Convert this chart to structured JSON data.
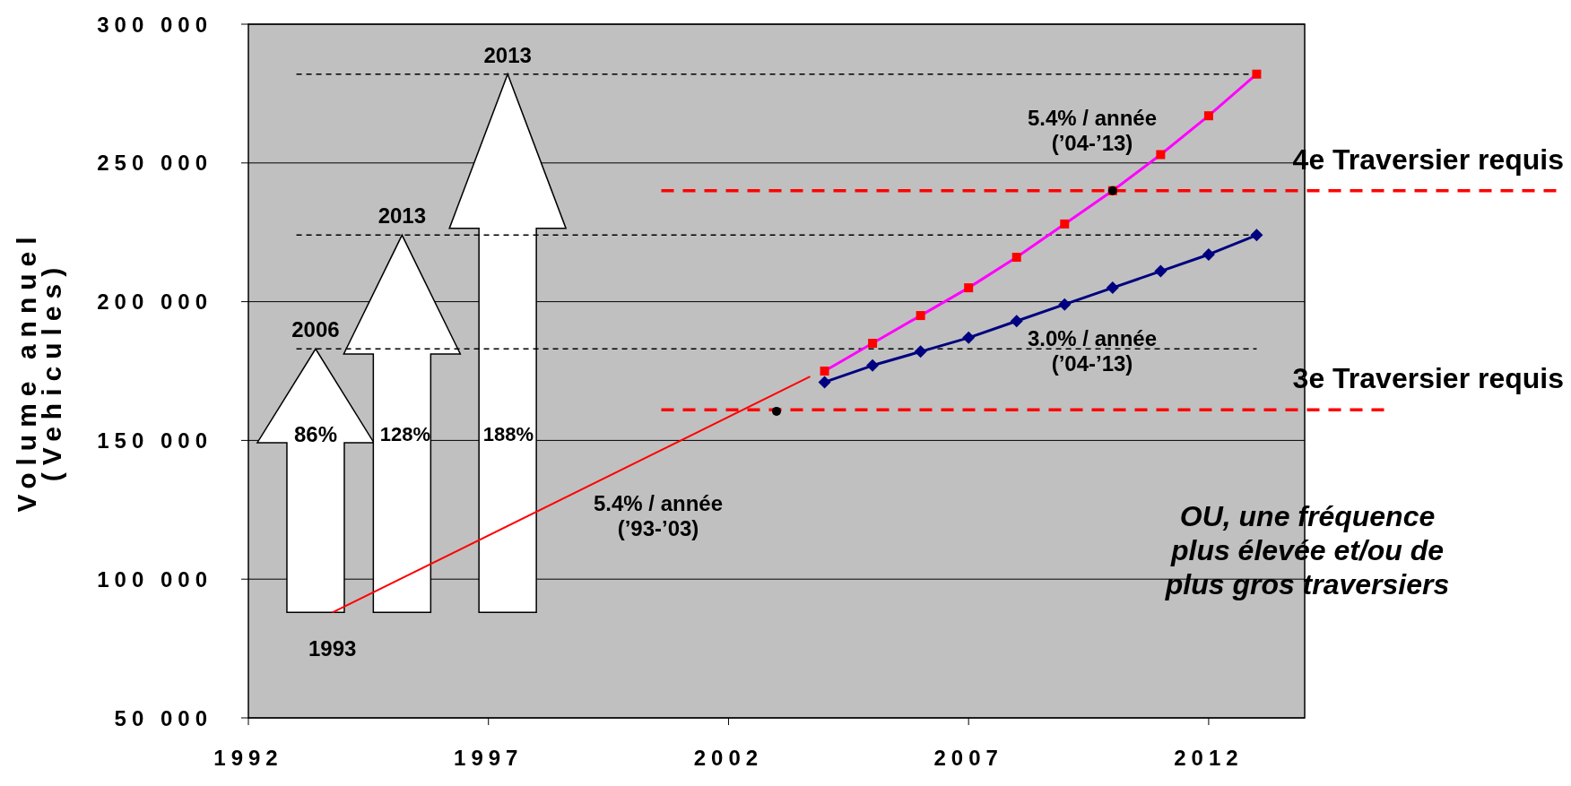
{
  "chart_data": {
    "type": "line",
    "ylabel": "Volume annuel\n(Vehicules)",
    "xlim": [
      1992,
      2014
    ],
    "xticks": [
      1992,
      1997,
      2002,
      2007,
      2012
    ],
    "ylim": [
      50000,
      300000
    ],
    "yticks": [
      {
        "value": 50000,
        "label": "50 000"
      },
      {
        "value": 100000,
        "label": "100 000"
      },
      {
        "value": 150000,
        "label": "150 000"
      },
      {
        "value": 200000,
        "label": "200 000"
      },
      {
        "value": 250000,
        "label": "250 000"
      },
      {
        "value": 300000,
        "label": "300 000"
      }
    ],
    "grid": "y",
    "series": [
      {
        "type": "line",
        "color": "#ff0000",
        "marker": "none",
        "x": [
          1993.75,
          2003.7
        ],
        "values": [
          88000,
          173000
        ]
      },
      {
        "type": "line",
        "color": "#ff00ff",
        "colors": [
          "#ff0000",
          "#ff0000",
          "#ff0000",
          "#ff0000",
          "#ff0000",
          "#ff0000",
          "#ff0000",
          "#ff0000",
          "#ff0000",
          "#ff0000"
        ],
        "marker": "square",
        "x": [
          2004,
          2005,
          2006,
          2007,
          2008,
          2009,
          2010,
          2011,
          2012,
          2013
        ],
        "values": [
          175000,
          185000,
          195000,
          205000,
          216000,
          228000,
          240000,
          253000,
          267000,
          282000
        ]
      },
      {
        "type": "line",
        "color": "#000080",
        "marker": "diamond",
        "x": [
          2004,
          2005,
          2006,
          2007,
          2008,
          2009,
          2010,
          2011,
          2012,
          2013
        ],
        "values": [
          171000,
          177000,
          182000,
          187000,
          193000,
          199000,
          205000,
          211000,
          217000,
          224000
        ]
      },
      {
        "type": "scatter",
        "color": "#000000",
        "marker": "circle",
        "x": [
          2003,
          2010
        ],
        "values": [
          160500,
          240000
        ]
      }
    ],
    "ref_lines": [
      {
        "axis": "y",
        "value": 240000,
        "label": "4e Traversier requis",
        "color": "#ff0000",
        "line_style": "dashed"
      },
      {
        "axis": "y",
        "value": 161000,
        "label": "3e Traversier requis",
        "color": "#ff0000",
        "line_style": "dashed"
      },
      {
        "axis": "y",
        "value": 183000,
        "color": "#000000",
        "line_style": "dashed"
      },
      {
        "axis": "y",
        "value": 224000,
        "color": "#000000",
        "line_style": "dashed"
      },
      {
        "axis": "y",
        "value": 282000,
        "color": "#000000",
        "line_style": "dashed"
      }
    ],
    "annotations": [
      {
        "text": "2006",
        "x": 1993.4,
        "y": 183000
      },
      {
        "text": "2013",
        "x": 1995.2,
        "y": 224000
      },
      {
        "text": "2013",
        "x": 1997.4,
        "y": 282000
      },
      {
        "text": "1993",
        "x": 1993.75,
        "y": 88000
      },
      "86%",
      "128%",
      "188%",
      "5.4% / année\n(’93-’03)",
      "5.4% / année\n(’04-’13)",
      "3.0% / année\n(’04-’13)",
      "OU, une fréquence\nplus élevée et/ou de\nplus gros traversiers"
    ]
  }
}
